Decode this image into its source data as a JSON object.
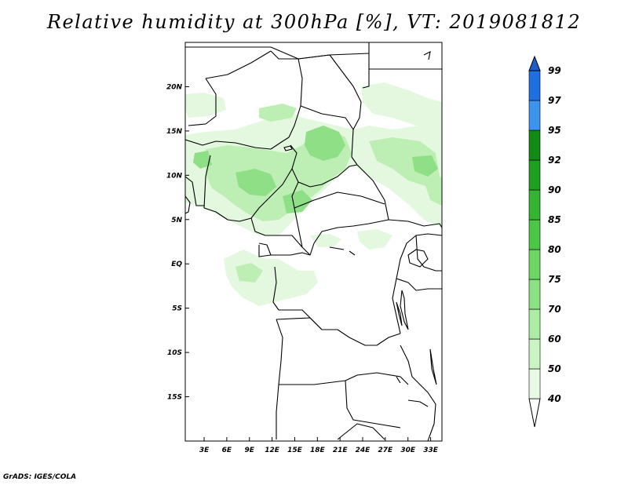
{
  "title": "Relative humidity at 300hPa [%], VT: 2019081812",
  "credit": "GrADS: IGES/COLA",
  "map": {
    "lon_labels": [
      "3E",
      "6E",
      "9E",
      "12E",
      "15E",
      "18E",
      "21E",
      "24E",
      "27E",
      "30E",
      "33E"
    ],
    "lon_values": [
      3,
      6,
      9,
      12,
      15,
      18,
      21,
      24,
      27,
      30,
      33
    ],
    "lat_labels": [
      "20N",
      "15N",
      "10N",
      "5N",
      "EQ",
      "5S",
      "10S",
      "15S"
    ],
    "lat_values": [
      20,
      15,
      10,
      5,
      0,
      -5,
      -10,
      -15
    ],
    "lon_range": [
      0.5,
      34.5
    ],
    "lat_range": [
      -20,
      25
    ]
  },
  "legend": {
    "levels": [
      "40",
      "50",
      "60",
      "70",
      "75",
      "80",
      "85",
      "90",
      "92",
      "95",
      "97",
      "99"
    ],
    "colors": [
      "#ffffff",
      "#e6fbe2",
      "#c9f5c3",
      "#aceca5",
      "#8be184",
      "#6cd563",
      "#4cc647",
      "#33b432",
      "#1f9f20",
      "#128a16",
      "#3d94ef",
      "#1e6fe0",
      "#1f5ec8"
    ]
  },
  "colors": {
    "humid_light": "#e3f8de",
    "humid_mid": "#bdefb4",
    "humid_high": "#8edf85",
    "coastline": "#000000"
  }
}
